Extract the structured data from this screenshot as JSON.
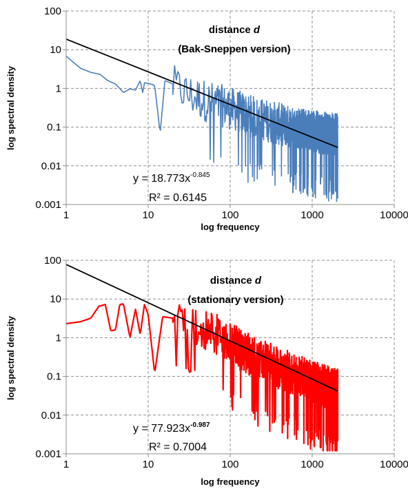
{
  "chart_data": [
    {
      "type": "line",
      "title_line1": "distance",
      "title_var": "d",
      "title_line2": "(Bak-Sneppen version)",
      "xlabel": "log frequency",
      "ylabel": "log spectral density",
      "xscale": "log",
      "yscale": "log",
      "xlim": [
        1,
        10000
      ],
      "ylim": [
        0.001,
        100
      ],
      "xticks": [
        "1",
        "10",
        "100",
        "1000",
        "10000"
      ],
      "yticks": [
        "100",
        "10",
        "1",
        "0.1",
        "0.01",
        "0.001"
      ],
      "grid": true,
      "series": [
        {
          "color": "#4a7ebb",
          "x_range": [
            1,
            2048
          ],
          "y_at_x1": 6.8,
          "points": [
            [
              1,
              6.8
            ],
            [
              1.5,
              3.3
            ],
            [
              2,
              2.6
            ],
            [
              2.6,
              2.3
            ],
            [
              3.2,
              1.6
            ],
            [
              4,
              1.3
            ],
            [
              4.5,
              1.0
            ],
            [
              5,
              0.78
            ],
            [
              6,
              0.98
            ],
            [
              7,
              0.9
            ],
            [
              8,
              1.6
            ],
            [
              8.6,
              0.75
            ],
            [
              9,
              1.4
            ],
            [
              10,
              1.35
            ],
            [
              12,
              1.2
            ],
            [
              14,
              0.07
            ],
            [
              16,
              1.6
            ],
            [
              20,
              1.3
            ],
            [
              25,
              1.1
            ],
            [
              30,
              0.8
            ],
            [
              50,
              0.55
            ],
            [
              100,
              0.35
            ],
            [
              200,
              0.2
            ],
            [
              500,
              0.12
            ],
            [
              1000,
              0.09
            ],
            [
              2048,
              0.07
            ]
          ]
        },
        {
          "name": "trendline",
          "color": "#000000",
          "type": "power",
          "coefficient": 18.773,
          "exponent": -0.845
        }
      ],
      "equation_base": "y = 18.773x",
      "equation_exp": "-0.845",
      "r2": "R² = 0.6145"
    },
    {
      "type": "line",
      "title_line1": "distance",
      "title_var": "d",
      "title_line2": "(stationary version)",
      "xlabel": "log frequency",
      "ylabel": "log spectral density",
      "xscale": "log",
      "yscale": "log",
      "xlim": [
        1,
        10000
      ],
      "ylim": [
        0.001,
        100
      ],
      "xticks": [
        "1",
        "10",
        "100",
        "1000",
        "10000"
      ],
      "yticks": [
        "100",
        "10",
        "1",
        "0.1",
        "0.01",
        "0.001"
      ],
      "grid": true,
      "series": [
        {
          "color": "#ff0000",
          "x_range": [
            1,
            2048
          ],
          "y_at_x1": 2.3,
          "points": [
            [
              1,
              2.3
            ],
            [
              1.5,
              2.6
            ],
            [
              2,
              3.2
            ],
            [
              2.5,
              6.5
            ],
            [
              3,
              7.2
            ],
            [
              3.5,
              1.5
            ],
            [
              4,
              1.6
            ],
            [
              4.5,
              7.2
            ],
            [
              5,
              7.5
            ],
            [
              6,
              1.0
            ],
            [
              7,
              5.5
            ],
            [
              8,
              1.2
            ],
            [
              9,
              7.2
            ],
            [
              10,
              4.0
            ],
            [
              12,
              0.12
            ],
            [
              15,
              3.5
            ],
            [
              20,
              3.2
            ],
            [
              30,
              3.0
            ],
            [
              50,
              2.0
            ],
            [
              100,
              0.8
            ],
            [
              200,
              0.35
            ],
            [
              500,
              0.15
            ],
            [
              1000,
              0.08
            ],
            [
              2048,
              0.05
            ]
          ]
        },
        {
          "name": "trendline",
          "color": "#000000",
          "type": "power",
          "coefficient": 77.923,
          "exponent": -0.987
        }
      ],
      "equation_base": "y = 77.923x",
      "equation_exp": "-0.987",
      "r2": "R² = 0.7004"
    }
  ]
}
